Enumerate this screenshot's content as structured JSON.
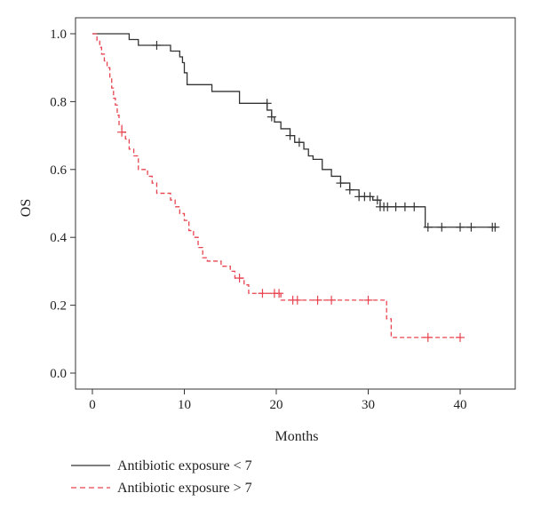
{
  "chart_data": {
    "type": "line",
    "step": true,
    "xlabel": "Months",
    "ylabel": "OS",
    "xlim": [
      0,
      44
    ],
    "ylim": [
      0.0,
      1.0
    ],
    "xticks": [
      0,
      10,
      20,
      30,
      40
    ],
    "yticks": [
      0.0,
      0.2,
      0.4,
      0.6,
      0.8,
      1.0
    ],
    "grid": false,
    "legend_position": "bottom-left",
    "series": [
      {
        "name": "Antibiotic exposure < 7",
        "color": "#333333",
        "dash": "solid",
        "steps": [
          [
            0,
            1.0
          ],
          [
            4,
            0.983
          ],
          [
            5,
            0.966
          ],
          [
            7,
            0.966
          ],
          [
            8.5,
            0.949
          ],
          [
            9.5,
            0.932
          ],
          [
            9.8,
            0.915
          ],
          [
            10,
            0.885
          ],
          [
            10.3,
            0.85
          ],
          [
            13,
            0.83
          ],
          [
            16,
            0.795
          ],
          [
            19,
            0.775
          ],
          [
            19.5,
            0.755
          ],
          [
            19.8,
            0.74
          ],
          [
            20.5,
            0.72
          ],
          [
            21.5,
            0.7
          ],
          [
            22,
            0.68
          ],
          [
            23,
            0.66
          ],
          [
            23.5,
            0.64
          ],
          [
            24,
            0.63
          ],
          [
            25,
            0.6
          ],
          [
            26,
            0.58
          ],
          [
            27,
            0.56
          ],
          [
            28,
            0.54
          ],
          [
            29,
            0.52
          ],
          [
            30.5,
            0.51
          ],
          [
            31.3,
            0.49
          ],
          [
            36.2,
            0.43
          ],
          [
            44,
            0.43
          ]
        ],
        "censors": [
          [
            7,
            0.966
          ],
          [
            19,
            0.795
          ],
          [
            19.5,
            0.755
          ],
          [
            21.5,
            0.7
          ],
          [
            22.5,
            0.68
          ],
          [
            27,
            0.56
          ],
          [
            28,
            0.54
          ],
          [
            29,
            0.52
          ],
          [
            29.6,
            0.52
          ],
          [
            30.2,
            0.52
          ],
          [
            31,
            0.51
          ],
          [
            31.3,
            0.49
          ],
          [
            31.7,
            0.49
          ],
          [
            32.1,
            0.49
          ],
          [
            33,
            0.49
          ],
          [
            34,
            0.49
          ],
          [
            35,
            0.49
          ],
          [
            36.5,
            0.43
          ],
          [
            38,
            0.43
          ],
          [
            40,
            0.43
          ],
          [
            41.2,
            0.43
          ],
          [
            43.5,
            0.43
          ],
          [
            43.8,
            0.43
          ]
        ]
      },
      {
        "name": "Antibiotic exposure > 7",
        "color": "#e8434f",
        "dash": "dashed",
        "steps": [
          [
            0,
            1.0
          ],
          [
            0.5,
            0.98
          ],
          [
            0.8,
            0.96
          ],
          [
            1.0,
            0.94
          ],
          [
            1.3,
            0.92
          ],
          [
            1.6,
            0.9
          ],
          [
            1.9,
            0.87
          ],
          [
            2.1,
            0.84
          ],
          [
            2.3,
            0.81
          ],
          [
            2.5,
            0.79
          ],
          [
            2.7,
            0.76
          ],
          [
            2.9,
            0.73
          ],
          [
            3.2,
            0.71
          ],
          [
            3.6,
            0.69
          ],
          [
            4.0,
            0.66
          ],
          [
            4.5,
            0.64
          ],
          [
            5.0,
            0.6
          ],
          [
            6.0,
            0.58
          ],
          [
            6.5,
            0.56
          ],
          [
            7.0,
            0.53
          ],
          [
            8.5,
            0.51
          ],
          [
            9.0,
            0.49
          ],
          [
            9.5,
            0.47
          ],
          [
            10.0,
            0.45
          ],
          [
            10.5,
            0.42
          ],
          [
            11.0,
            0.4
          ],
          [
            11.5,
            0.37
          ],
          [
            12.0,
            0.34
          ],
          [
            12.5,
            0.33
          ],
          [
            14.0,
            0.315
          ],
          [
            15.0,
            0.3
          ],
          [
            15.5,
            0.28
          ],
          [
            16.5,
            0.26
          ],
          [
            17.0,
            0.235
          ],
          [
            20.5,
            0.215
          ],
          [
            32.0,
            0.16
          ],
          [
            32.5,
            0.105
          ],
          [
            40.0,
            0.105
          ]
        ],
        "censors": [
          [
            3.2,
            0.71
          ],
          [
            16.0,
            0.28
          ],
          [
            18.5,
            0.235
          ],
          [
            19.8,
            0.235
          ],
          [
            20.3,
            0.235
          ],
          [
            21.8,
            0.215
          ],
          [
            22.3,
            0.215
          ],
          [
            24.5,
            0.215
          ],
          [
            26.0,
            0.215
          ],
          [
            30.0,
            0.215
          ],
          [
            36.5,
            0.105
          ],
          [
            40.0,
            0.105
          ]
        ]
      }
    ]
  }
}
